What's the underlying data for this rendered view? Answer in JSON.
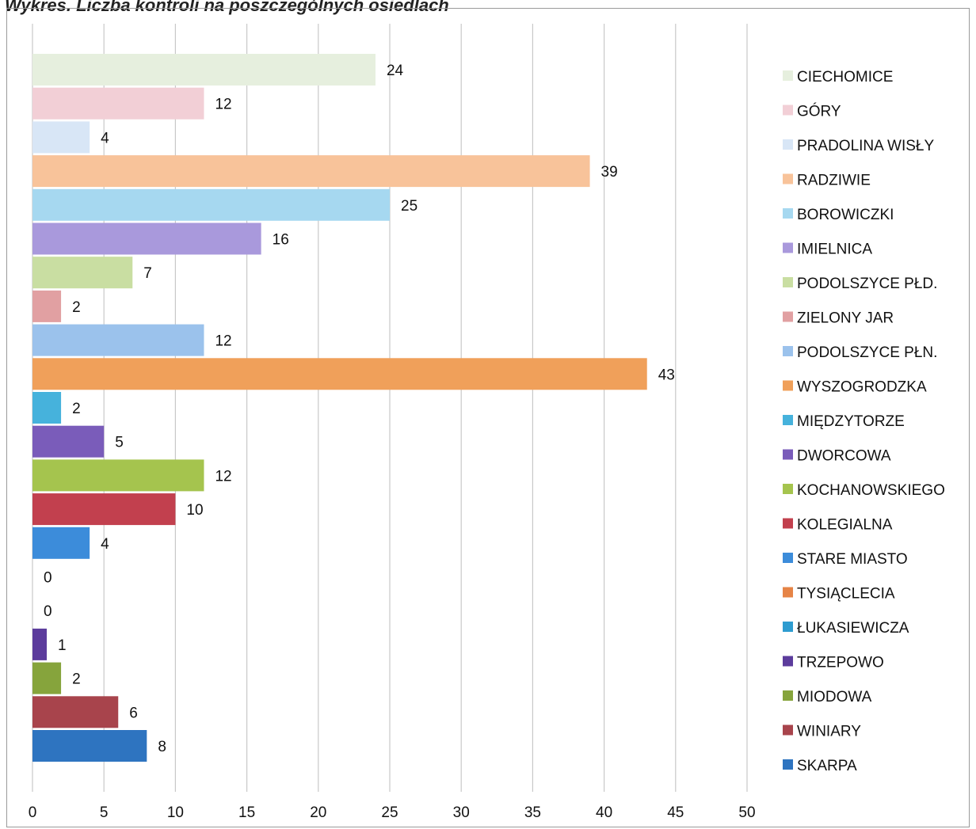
{
  "chart_data": {
    "type": "bar",
    "orientation": "horizontal",
    "title": "Wykres. Liczba kontroli na poszczególnych osiedlach",
    "xlim": [
      0,
      50
    ],
    "xticks": [
      "0",
      "5",
      "10",
      "15",
      "20",
      "25",
      "30",
      "35",
      "40",
      "45",
      "50"
    ],
    "grid": "vertical",
    "legend_position": "right",
    "series": [
      {
        "name": "CIECHOMICE",
        "value": 24,
        "color": "#e6efde"
      },
      {
        "name": "GÓRY",
        "value": 12,
        "color": "#f2cfd6"
      },
      {
        "name": "PRADOLINA WISŁY",
        "value": 4,
        "color": "#d8e6f6"
      },
      {
        "name": "RADZIWIE",
        "value": 39,
        "color": "#f8c39a"
      },
      {
        "name": "BOROWICZKI",
        "value": 25,
        "color": "#a6d8f0"
      },
      {
        "name": "IMIELNICA",
        "value": 16,
        "color": "#a999dc"
      },
      {
        "name": "PODOLSZYCE PŁD.",
        "value": 7,
        "color": "#c9dea2"
      },
      {
        "name": "ZIELONY JAR",
        "value": 2,
        "color": "#e1a0a2"
      },
      {
        "name": "PODOLSZYCE PŁN.",
        "value": 12,
        "color": "#9bc2ec"
      },
      {
        "name": "WYSZOGRODZKA",
        "value": 43,
        "color": "#f0a05a"
      },
      {
        "name": "MIĘDZYTORZE",
        "value": 2,
        "color": "#46b2dc"
      },
      {
        "name": "DWORCOWA",
        "value": 5,
        "color": "#7a5cba"
      },
      {
        "name": "KOCHANOWSKIEGO",
        "value": 12,
        "color": "#a5c44e"
      },
      {
        "name": "KOLEGIALNA",
        "value": 10,
        "color": "#c2404e"
      },
      {
        "name": "STARE MIASTO",
        "value": 4,
        "color": "#3c8cda"
      },
      {
        "name": "TYSIĄCLECIA",
        "value": 0,
        "color": "#e68446"
      },
      {
        "name": "ŁUKASIEWICZA",
        "value": 0,
        "color": "#2e9cd0"
      },
      {
        "name": "TRZEPOWO",
        "value": 1,
        "color": "#5c3c9c"
      },
      {
        "name": "MIODOWA",
        "value": 2,
        "color": "#86a43c"
      },
      {
        "name": "WINIARY",
        "value": 6,
        "color": "#a8444c"
      },
      {
        "name": "SKARPA",
        "value": 8,
        "color": "#2e74c0"
      }
    ]
  }
}
